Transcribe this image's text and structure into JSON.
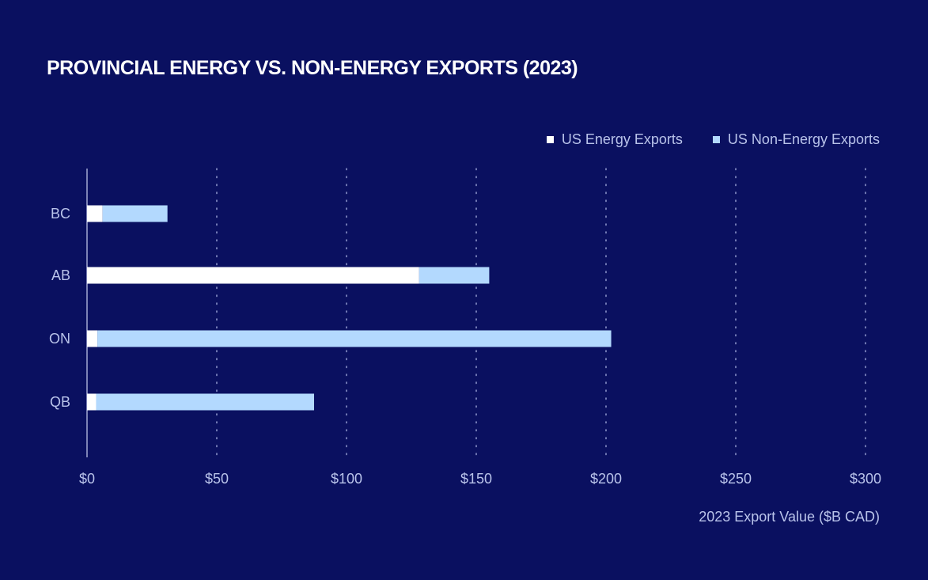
{
  "title": "PROVINCIAL ENERGY VS. NON-ENERGY EXPORTS (2023)",
  "colors": {
    "background": "#0a1060",
    "energy": "#ffffff",
    "non_energy": "#b3d9fe",
    "text": "#b9c3ea",
    "grid": "#8b93c8"
  },
  "chart_data": {
    "type": "bar",
    "orientation": "horizontal",
    "stacked": true,
    "title": "PROVINCIAL ENERGY VS. NON-ENERGY EXPORTS (2023)",
    "categories": [
      "BC",
      "AB",
      "ON",
      "QB"
    ],
    "series": [
      {
        "name": "US Energy Exports",
        "values": [
          6,
          128,
          4,
          3.5
        ]
      },
      {
        "name": "US Non-Energy Exports",
        "values": [
          25,
          27,
          198,
          84
        ]
      }
    ],
    "xlabel": "2023 Export Value ($B CAD)",
    "ylabel": "",
    "xlim": [
      0,
      300
    ],
    "xticks": [
      0,
      50,
      100,
      150,
      200,
      250,
      300
    ],
    "xtick_labels": [
      "$0",
      "$50",
      "$100",
      "$150",
      "$200",
      "$250",
      "$300"
    ],
    "grid": "vertical dotted",
    "legend": "top-right"
  }
}
